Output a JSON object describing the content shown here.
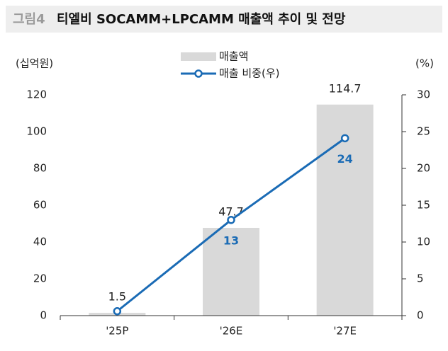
{
  "chart_data": {
    "type": "bar+line",
    "figure_label": "그림4",
    "title": "티엘비 SOCAMM+LPCAMM 매출액 추이 및 전망",
    "y_label": "(십억원)",
    "y2_label": "(%)",
    "categories": [
      "'25P",
      "'26E",
      "'27E"
    ],
    "series": [
      {
        "name": "매출액",
        "type": "bar",
        "color": "#d9d9d9",
        "values": [
          1.5,
          47.7,
          114.7
        ]
      },
      {
        "name": "매출 비중(우)",
        "type": "line",
        "axis": "y2",
        "color": "#1a6bb5",
        "values": [
          0.6,
          13,
          24.1
        ],
        "value_labels": [
          null,
          "13",
          "24"
        ]
      }
    ],
    "ylim": [
      0,
      120
    ],
    "yticks": [
      0,
      20,
      40,
      60,
      80,
      100,
      120
    ],
    "y2lim": [
      0,
      30
    ],
    "y2ticks": [
      0,
      5,
      10,
      15,
      20,
      25,
      30
    ]
  }
}
